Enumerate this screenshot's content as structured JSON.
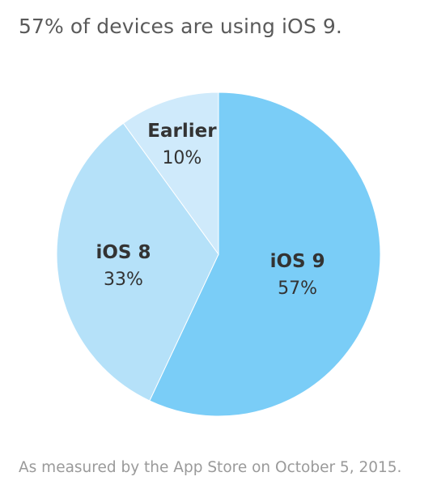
{
  "headline": "57% of devices are using iOS 9.",
  "footnote": "As measured by the App Store on October 5, 2015.",
  "chart_data": {
    "type": "pie",
    "title": "57% of devices are using iOS 9.",
    "slices": [
      {
        "name": "iOS 9",
        "value": 57,
        "label": "57%",
        "color": "#7acdf7"
      },
      {
        "name": "iOS 8",
        "value": 33,
        "label": "33%",
        "color": "#b5e1f9"
      },
      {
        "name": "Earlier",
        "value": 10,
        "label": "10%",
        "color": "#cfeafb"
      }
    ],
    "start": "12 o'clock",
    "direction": "clockwise",
    "legend": "none"
  }
}
